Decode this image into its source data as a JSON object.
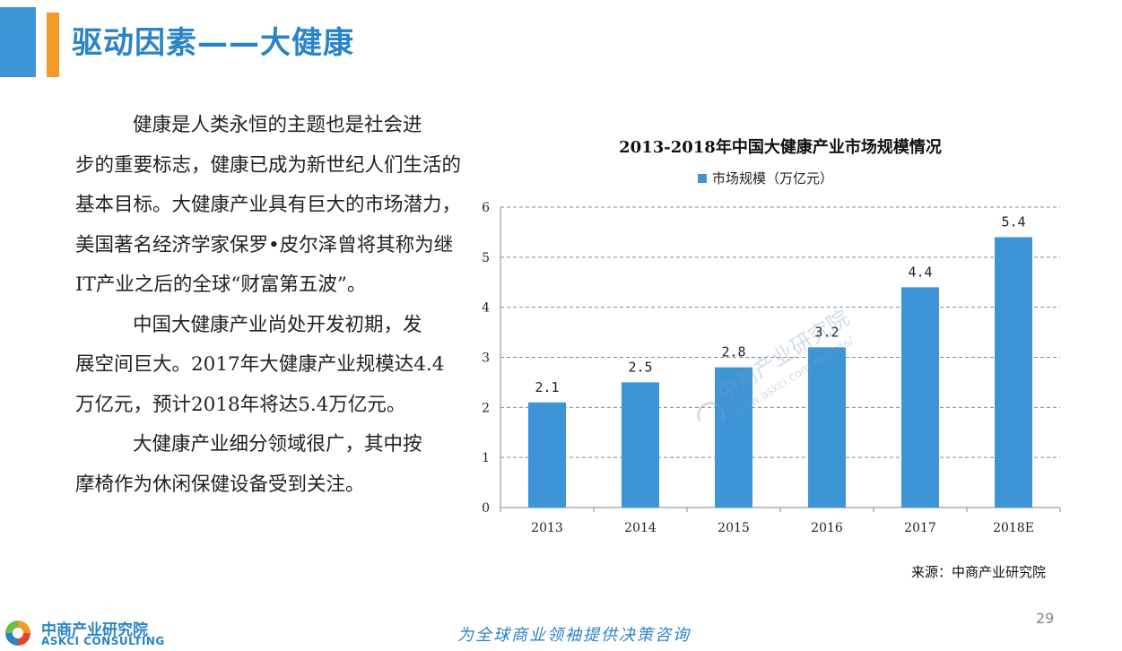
{
  "header": {
    "title": "驱动因素——大健康"
  },
  "body": {
    "paragraphs": [
      {
        "first": "健康是人类永恒的主题也是社会进",
        "rest": "步的重要标志，健康已成为新世纪人们生活的基本目标。大健康产业具有巨大的市场潜力，美国著名经济学家保罗•皮尔泽曾将其称为继IT产业之后的全球“财富第五波”。"
      },
      {
        "first": "中国大健康产业尚处开发初期，发",
        "rest": "展空间巨大。2017年大健康产业规模达4.4万亿元，预计2018年将达5.4万亿元。"
      },
      {
        "first": "大健康产业细分领域很广，其中按",
        "rest": "摩椅作为休闲保健设备受到关注。"
      }
    ]
  },
  "chart_data": {
    "type": "bar",
    "title": "2013-2018年中国大健康产业市场规模情况",
    "categories": [
      "2013",
      "2014",
      "2015",
      "2016",
      "2017",
      "2018E"
    ],
    "series": [
      {
        "name": "市场规模（万亿元）",
        "values": [
          2.1,
          2.5,
          2.8,
          3.2,
          4.4,
          5.4
        ]
      }
    ],
    "data_labels": [
      "2.1",
      "2.5",
      "2.8",
      "3.2",
      "4.4",
      "5.4"
    ],
    "y_ticks": [
      "0",
      "1",
      "2",
      "3",
      "4",
      "5",
      "6"
    ],
    "ylim": [
      0,
      6
    ],
    "grid": "horizontal dashed",
    "legend_position": "top",
    "bar_color": "#3d95d6"
  },
  "source": "来源：中商产业研究院",
  "page_number": "29",
  "footer": {
    "slogan": "为全球商业领袖提供决策咨询"
  },
  "logo": {
    "cn": "中商产业研究院",
    "en": "ASKCI CONSULTING"
  },
  "watermark": {
    "cn": "中商产业研究院",
    "url": "www.askci.com/reports/"
  }
}
